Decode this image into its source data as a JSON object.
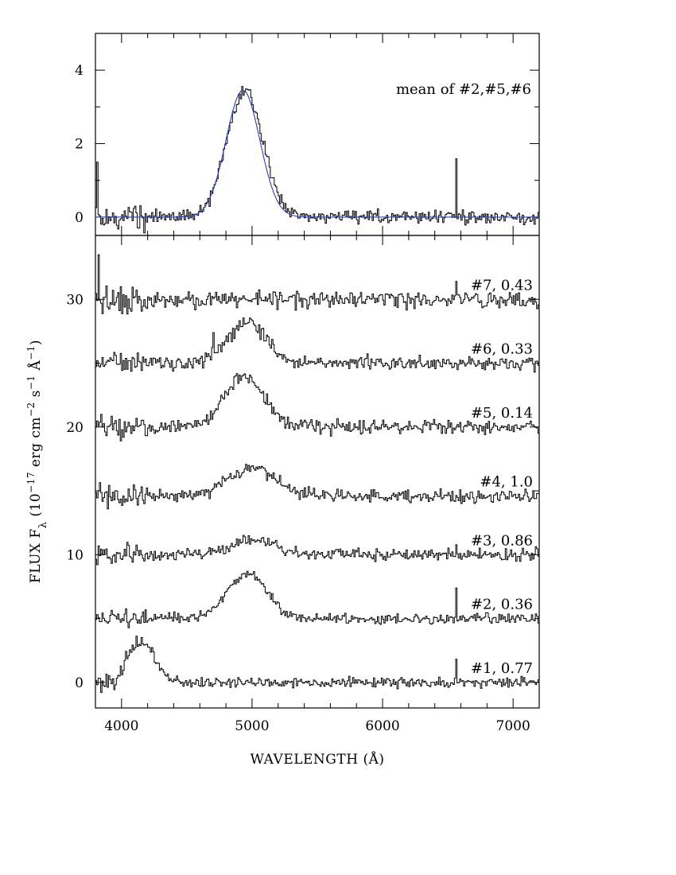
{
  "chart_data": [
    {
      "type": "line",
      "panel": "top",
      "xlabel": "",
      "ylabel": "",
      "xlim": [
        3800,
        7200
      ],
      "ylim": [
        -0.5,
        5.0
      ],
      "xticks": [
        4000,
        5000,
        6000,
        7000
      ],
      "yticks": [
        0,
        2,
        4
      ],
      "ytick_labels": [
        "0",
        "2",
        "4"
      ],
      "annotation": "mean of  #2,#5,#6",
      "fit_color": "#2d3fbf",
      "series": [
        {
          "label": "mean of  #2,#5,#6",
          "kind": "step",
          "baseline": 0.0,
          "line_center": 4940,
          "line_sigma": 140,
          "line_amplitude": 3.4,
          "noise_amplitude": 0.18,
          "spikes": [
            [
              3810,
              1.5
            ],
            [
              6560,
              1.7
            ]
          ]
        },
        {
          "kind": "gaussian_fit",
          "baseline": 0.0,
          "line_center": 4930,
          "line_sigma": 130,
          "line_amplitude": 3.45
        }
      ]
    },
    {
      "type": "line",
      "panel": "bottom",
      "xlabel": "WAVELENGTH (Å)",
      "ylabel_parts": [
        "FLUX F",
        "λ",
        " (10",
        "−17",
        " erg cm",
        "−2",
        " s",
        "−1",
        " Å",
        "−1",
        ")"
      ],
      "xlim": [
        3800,
        7200
      ],
      "ylim": [
        -2,
        35
      ],
      "xticks": [
        4000,
        5000,
        6000,
        7000
      ],
      "xtick_labels": [
        "4000",
        "5000",
        "6000",
        "7000"
      ],
      "yticks": [
        0,
        10,
        20,
        30
      ],
      "ytick_labels": [
        "0",
        "10",
        "20",
        "30"
      ],
      "series": [
        {
          "label": "#1,  0.77",
          "baseline": 0.0,
          "line_center": 4150,
          "line_sigma": 100,
          "line_amplitude": 3.2,
          "noise_amplitude": 0.4,
          "spikes": [
            [
              6560,
              1.3
            ]
          ]
        },
        {
          "label": "#2,  0.36",
          "baseline": 5.0,
          "line_center": 4960,
          "line_sigma": 150,
          "line_amplitude": 3.5,
          "noise_amplitude": 0.4,
          "spikes": [
            [
              6560,
              2.3
            ]
          ]
        },
        {
          "label": "#3,  0.86",
          "baseline": 10.0,
          "line_center": 5000,
          "line_sigma": 160,
          "line_amplitude": 1.2,
          "noise_amplitude": 0.5,
          "spikes": [
            [
              6560,
              1.2
            ]
          ]
        },
        {
          "label": "#4,  1.0",
          "baseline": 14.6,
          "line_center": 4980,
          "line_sigma": 180,
          "line_amplitude": 2.2,
          "noise_amplitude": 0.5,
          "spikes": []
        },
        {
          "label": "#5,  0.14",
          "baseline": 20.0,
          "line_center": 4930,
          "line_sigma": 150,
          "line_amplitude": 4.0,
          "noise_amplitude": 0.5,
          "spikes": []
        },
        {
          "label": "#6,  0.33",
          "baseline": 25.0,
          "line_center": 4960,
          "line_sigma": 150,
          "line_amplitude": 3.2,
          "noise_amplitude": 0.5,
          "spikes": [
            [
              4700,
              1.5
            ]
          ]
        },
        {
          "label": "#7,  0.43",
          "baseline": 30.0,
          "line_center": 5000,
          "line_sigma": 150,
          "line_amplitude": 0.0,
          "noise_amplitude": 0.6,
          "spikes": [
            [
              3820,
              3.0
            ],
            [
              6560,
              1.5
            ]
          ]
        }
      ]
    }
  ]
}
